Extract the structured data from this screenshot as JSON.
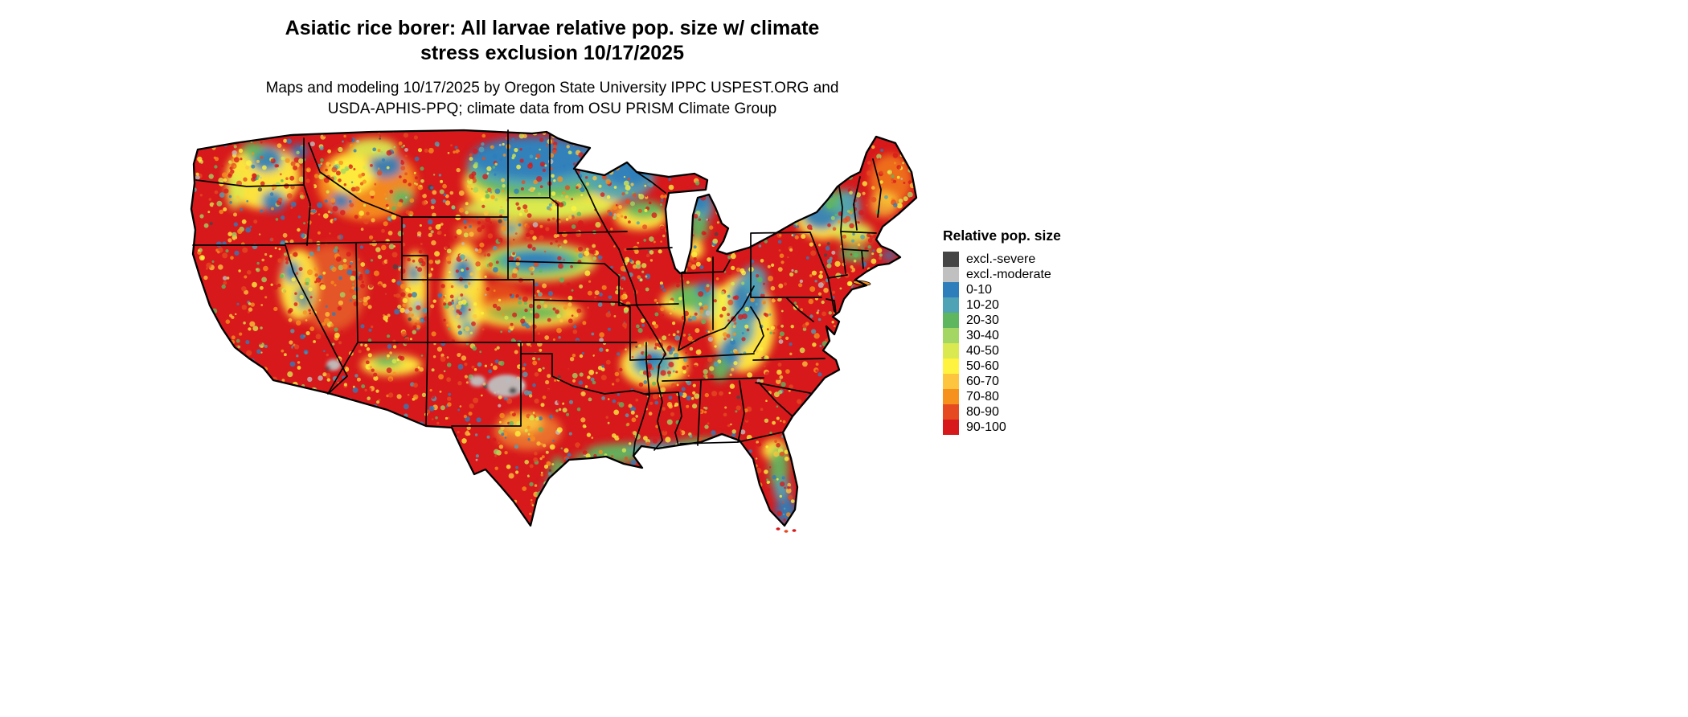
{
  "title": {
    "line1": "Asiatic rice borer: All larvae relative pop. size w/ climate",
    "line2": "stress exclusion 10/17/2025"
  },
  "subtitle": {
    "line1": "Maps and modeling 10/17/2025 by Oregon State University IPPC USPEST.ORG and",
    "line2": "USDA-APHIS-PPQ; climate data from OSU PRISM Climate Group"
  },
  "legend": {
    "title": "Relative pop. size",
    "entries": [
      {
        "label": "excl.-severe",
        "color": "#454545"
      },
      {
        "label": "excl.-moderate",
        "color": "#c0c0c0"
      },
      {
        "label": "0-10",
        "color": "#2e7ebc"
      },
      {
        "label": "10-20",
        "color": "#4fa3b5"
      },
      {
        "label": "20-30",
        "color": "#5eb75e"
      },
      {
        "label": "30-40",
        "color": "#a3d662"
      },
      {
        "label": "40-50",
        "color": "#d9e94f"
      },
      {
        "label": "50-60",
        "color": "#fff33f"
      },
      {
        "label": "60-70",
        "color": "#fdc53e"
      },
      {
        "label": "70-80",
        "color": "#f6911e"
      },
      {
        "label": "80-90",
        "color": "#e54a20"
      },
      {
        "label": "90-100",
        "color": "#d7191c"
      }
    ]
  },
  "map": {
    "background": "#ffffff",
    "border_color": "#000000",
    "base_class": "90-100"
  }
}
